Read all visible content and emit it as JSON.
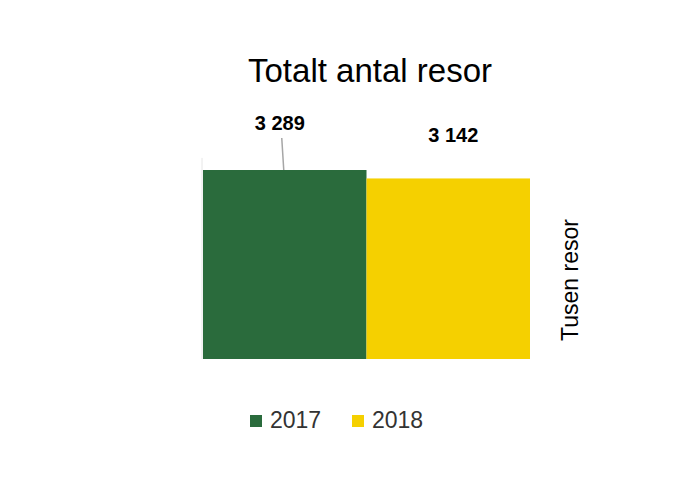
{
  "chart_data": {
    "type": "bar",
    "title": "Totalt antal resor",
    "y_label": "Tusen resor",
    "categories": [
      null
    ],
    "series": [
      {
        "name": "2017",
        "color": "#2a6b3c",
        "values": [
          3289
        ],
        "value_labels": [
          "3 289"
        ]
      },
      {
        "name": "2018",
        "color": "#f5d000",
        "values": [
          3142
        ],
        "value_labels": [
          "3 142"
        ]
      }
    ],
    "ylim": [
      0,
      3500
    ],
    "tick_labels": false,
    "grid": false,
    "data_labels": true,
    "legend": "bottom"
  }
}
